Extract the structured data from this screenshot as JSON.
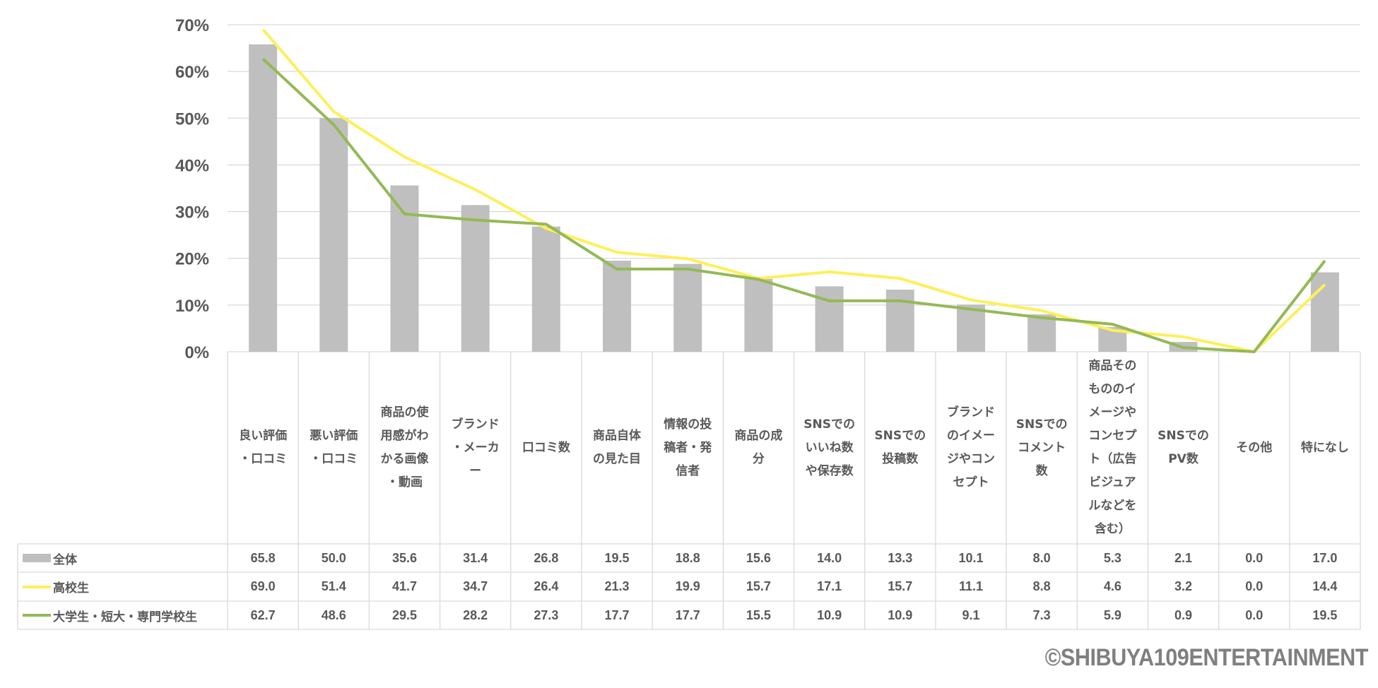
{
  "chart_data": {
    "type": "bar+line",
    "ylim": [
      0,
      70
    ],
    "yticks": [
      "0%",
      "10%",
      "20%",
      "30%",
      "40%",
      "50%",
      "60%",
      "70%"
    ],
    "grid": true,
    "legend_placement": "data-table-left",
    "categories": [
      "良い評価・口コミ",
      "悪い評価・口コミ",
      "商品の使用感がわかる画像・動画",
      "ブランド・メーカー",
      "口コミ数",
      "商品自体の見た目",
      "情報の投稿者・発信者",
      "商品の成分",
      "SNSでのいいね数や保存数",
      "SNSでの投稿数",
      "ブランドのイメージやコンセプト",
      "SNSでのコメント数",
      "商品そのもののイメージやコンセプト（広告ビジュアルなどを含む）",
      "SNSでのPV数",
      "その他",
      "特になし"
    ],
    "series": [
      {
        "name": "全体",
        "type": "bar",
        "color": "#bfbfbf",
        "values": [
          65.8,
          50.0,
          35.6,
          31.4,
          26.8,
          19.5,
          18.8,
          15.6,
          14.0,
          13.3,
          10.1,
          8.0,
          5.3,
          2.1,
          0.0,
          17.0
        ]
      },
      {
        "name": "高校生",
        "type": "line",
        "color": "#ffef5a",
        "values": [
          69.0,
          51.4,
          41.7,
          34.7,
          26.4,
          21.3,
          19.9,
          15.7,
          17.1,
          15.7,
          11.1,
          8.8,
          4.6,
          3.2,
          0.0,
          14.4
        ]
      },
      {
        "name": "大学生・短大・専門学校生",
        "type": "line",
        "color": "#94b956",
        "values": [
          62.7,
          48.6,
          29.5,
          28.2,
          27.3,
          17.7,
          17.7,
          15.5,
          10.9,
          10.9,
          9.1,
          7.3,
          5.9,
          0.9,
          0.0,
          19.5
        ]
      }
    ]
  },
  "copyright": "©SHIBUYA109ENTERTAINMENT"
}
